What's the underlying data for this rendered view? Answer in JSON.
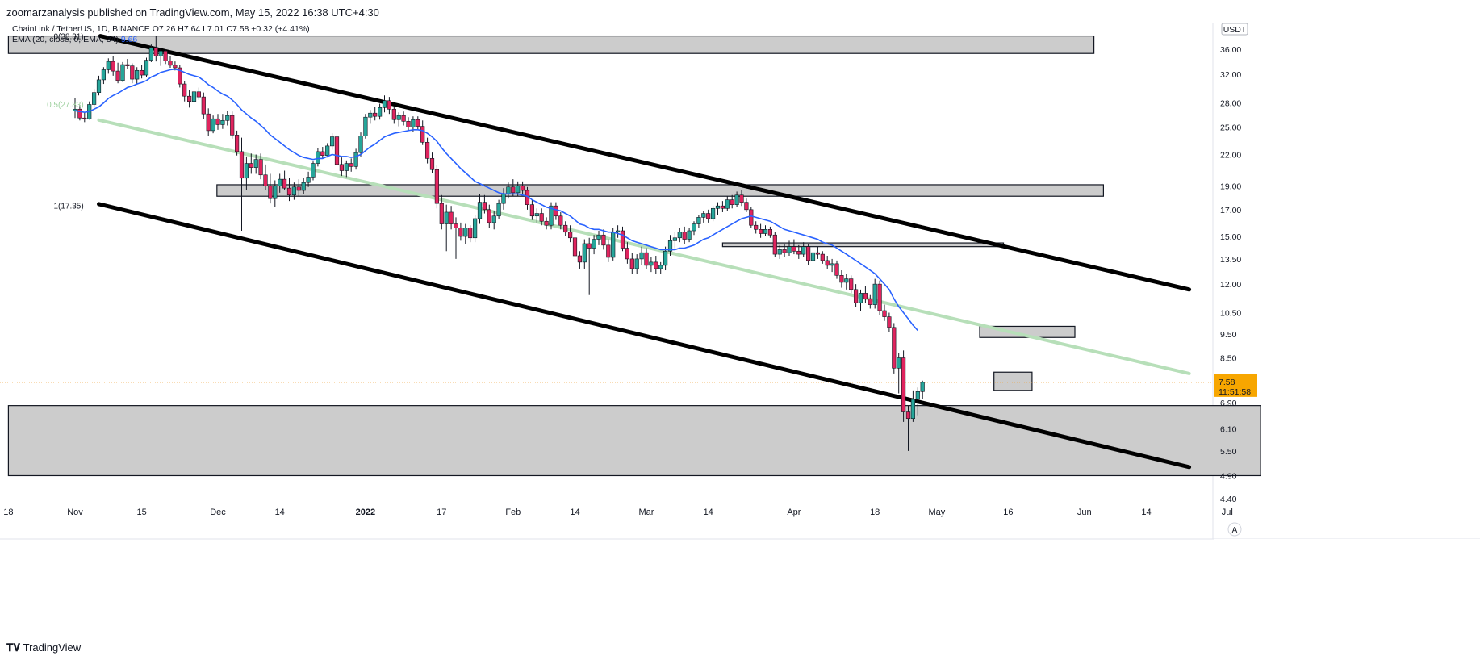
{
  "header": {
    "publisher": "zoomarzanalysis published on TradingView.com, May 15, 2022 16:38 UTC+4:30"
  },
  "chart_data": {
    "type": "candlestick",
    "symbol_line": "ChainLink / TetherUS, 1D, BINANCE  O7.26  H7.64  L7.01  C7.58  +0.32 (+4.41%)",
    "indicator_line": "EMA (20, close, 0, EMA, 34)",
    "indicator_value": "9.66",
    "quote_currency": "USDT",
    "price_axis_ticks": [
      36.0,
      32.0,
      28.0,
      25.0,
      22.0,
      19.0,
      17.0,
      15.0,
      13.5,
      12.0,
      10.5,
      9.5,
      8.5,
      7.58,
      6.9,
      6.1,
      5.5,
      4.9,
      4.4
    ],
    "price_axis_labels": [
      "36.00",
      "32.00",
      "28.00",
      "25.00",
      "22.00",
      "19.00",
      "17.00",
      "15.00",
      "13.50",
      "12.00",
      "10.50",
      "9.50",
      "8.50",
      "6.90",
      "6.10",
      "5.50",
      "4.90",
      "4.40"
    ],
    "time_axis_labels": [
      {
        "label": "18",
        "day": -14
      },
      {
        "label": "Nov",
        "day": 0
      },
      {
        "label": "15",
        "day": 14
      },
      {
        "label": "Dec",
        "day": 30
      },
      {
        "label": "14",
        "day": 43
      },
      {
        "label": "2022",
        "day": 61
      },
      {
        "label": "17",
        "day": 77
      },
      {
        "label": "Feb",
        "day": 92
      },
      {
        "label": "14",
        "day": 105
      },
      {
        "label": "Mar",
        "day": 120
      },
      {
        "label": "14",
        "day": 133
      },
      {
        "label": "Apr",
        "day": 151
      },
      {
        "label": "18",
        "day": 168
      },
      {
        "label": "May",
        "day": 181
      },
      {
        "label": "16",
        "day": 196
      },
      {
        "label": "Jun",
        "day": 212
      },
      {
        "label": "14",
        "day": 225
      },
      {
        "label": "Jul",
        "day": 242
      }
    ],
    "last_price": {
      "value": 7.58,
      "label": "7.58",
      "countdown": "11:51:58"
    },
    "fib_labels": [
      {
        "text": "0(38.31)",
        "day": 3,
        "price": 38.31
      },
      {
        "text": "0.5(27.83)",
        "day": 3,
        "price": 27.83
      },
      {
        "text": "1(17.35)",
        "day": 3,
        "price": 17.35
      }
    ],
    "channel_lines": [
      {
        "name": "upper",
        "from": {
          "day": 5.3,
          "price": 38.3
        },
        "to": {
          "day": 234,
          "price": 11.7
        }
      },
      {
        "name": "fib-mid",
        "from": {
          "day": 5,
          "price": 25.85
        },
        "to": {
          "day": 234,
          "price": 7.9
        }
      },
      {
        "name": "lower",
        "from": {
          "day": 5,
          "price": 17.45
        },
        "to": {
          "day": 234,
          "price": 5.1
        }
      }
    ],
    "zones": [
      {
        "name": "top-resistance",
        "from_day": -14,
        "to_day": 214,
        "high": 38.3,
        "low": 35.3
      },
      {
        "name": "mid-resistance",
        "from_day": 29.8,
        "to_day": 216,
        "high": 19.1,
        "low": 18.1
      },
      {
        "name": "resistance-15",
        "from_day": 136,
        "to_day": 195,
        "high": 14.55,
        "low": 14.3
      },
      {
        "name": "resistance-9-5",
        "from_day": 190,
        "to_day": 210,
        "high": 9.85,
        "low": 9.35
      },
      {
        "name": "resistance-7-8",
        "from_day": 193,
        "to_day": 201,
        "high": 7.95,
        "low": 7.3
      },
      {
        "name": "support-zone",
        "from_day": -14,
        "to_day": 249,
        "high": 6.8,
        "low": 4.9
      }
    ],
    "candles": [
      [
        27.0,
        28.6,
        26.1,
        27.2
      ],
      [
        27.2,
        27.7,
        25.8,
        26.1
      ],
      [
        26.1,
        26.8,
        25.6,
        26.0
      ],
      [
        26.0,
        28.2,
        25.9,
        27.8
      ],
      [
        27.8,
        29.9,
        27.4,
        29.4
      ],
      [
        29.4,
        31.8,
        29.0,
        31.2
      ],
      [
        31.2,
        33.1,
        30.6,
        32.7
      ],
      [
        32.7,
        34.5,
        32.1,
        34.0
      ],
      [
        34.0,
        34.9,
        31.8,
        32.5
      ],
      [
        32.5,
        33.8,
        30.7,
        31.1
      ],
      [
        31.1,
        33.9,
        30.9,
        33.5
      ],
      [
        33.5,
        34.4,
        32.8,
        33.3
      ],
      [
        33.3,
        33.7,
        30.7,
        31.3
      ],
      [
        31.3,
        33.1,
        30.5,
        32.6
      ],
      [
        32.6,
        33.4,
        31.4,
        31.9
      ],
      [
        31.9,
        34.6,
        31.6,
        34.2
      ],
      [
        34.2,
        36.8,
        33.9,
        36.3
      ],
      [
        36.3,
        38.3,
        34.0,
        34.9
      ],
      [
        34.9,
        36.2,
        33.3,
        35.7
      ],
      [
        35.7,
        36.0,
        33.6,
        34.1
      ],
      [
        34.1,
        34.8,
        33.0,
        33.4
      ],
      [
        33.4,
        34.0,
        32.6,
        33.0
      ],
      [
        33.0,
        33.5,
        30.1,
        30.6
      ],
      [
        30.6,
        31.0,
        28.2,
        28.9
      ],
      [
        28.9,
        29.8,
        27.4,
        28.2
      ],
      [
        28.2,
        30.0,
        27.9,
        29.5
      ],
      [
        29.5,
        30.1,
        28.4,
        28.8
      ],
      [
        28.8,
        29.4,
        26.0,
        26.6
      ],
      [
        26.6,
        27.3,
        24.0,
        24.6
      ],
      [
        24.6,
        26.4,
        24.3,
        26.0
      ],
      [
        26.0,
        26.6,
        24.7,
        25.3
      ],
      [
        25.3,
        26.6,
        24.8,
        25.8
      ],
      [
        25.8,
        27.0,
        25.2,
        26.4
      ],
      [
        26.4,
        26.9,
        23.7,
        24.1
      ],
      [
        24.1,
        24.6,
        21.9,
        22.3
      ],
      [
        22.3,
        23.8,
        15.4,
        19.7
      ],
      [
        19.7,
        21.8,
        18.6,
        21.1
      ],
      [
        21.1,
        22.1,
        20.1,
        20.7
      ],
      [
        20.7,
        22.0,
        20.1,
        21.5
      ],
      [
        21.5,
        22.1,
        19.6,
        20.0
      ],
      [
        20.0,
        21.0,
        18.6,
        19.0
      ],
      [
        19.0,
        20.1,
        17.5,
        17.9
      ],
      [
        17.9,
        19.5,
        17.2,
        19.0
      ],
      [
        19.0,
        20.1,
        18.4,
        19.6
      ],
      [
        19.6,
        20.4,
        18.6,
        18.8
      ],
      [
        18.8,
        19.7,
        17.7,
        18.2
      ],
      [
        18.2,
        19.3,
        17.8,
        18.9
      ],
      [
        18.9,
        19.6,
        18.1,
        18.6
      ],
      [
        18.6,
        19.7,
        18.3,
        19.3
      ],
      [
        19.3,
        20.3,
        18.9,
        19.8
      ],
      [
        19.8,
        21.3,
        19.5,
        21.1
      ],
      [
        21.1,
        22.7,
        20.8,
        22.3
      ],
      [
        22.3,
        22.8,
        21.6,
        21.9
      ],
      [
        21.9,
        23.2,
        21.7,
        22.9
      ],
      [
        22.9,
        24.3,
        22.5,
        23.9
      ],
      [
        23.9,
        24.4,
        20.6,
        21.0
      ],
      [
        21.0,
        21.7,
        19.9,
        20.4
      ],
      [
        20.4,
        21.4,
        19.8,
        21.1
      ],
      [
        21.1,
        21.6,
        20.3,
        20.8
      ],
      [
        20.8,
        22.6,
        20.5,
        22.2
      ],
      [
        22.2,
        24.4,
        21.8,
        24.0
      ],
      [
        24.0,
        26.6,
        23.7,
        26.2
      ],
      [
        26.2,
        27.1,
        25.4,
        26.7
      ],
      [
        26.7,
        27.5,
        25.8,
        26.3
      ],
      [
        26.3,
        27.9,
        25.9,
        27.4
      ],
      [
        27.4,
        29.0,
        26.8,
        28.3
      ],
      [
        28.3,
        28.8,
        26.6,
        27.2
      ],
      [
        27.2,
        27.6,
        25.4,
        25.9
      ],
      [
        25.9,
        26.8,
        25.1,
        26.4
      ],
      [
        26.4,
        26.9,
        25.2,
        25.7
      ],
      [
        25.7,
        26.2,
        24.6,
        25.0
      ],
      [
        25.0,
        26.3,
        24.5,
        25.9
      ],
      [
        25.9,
        26.3,
        24.7,
        25.1
      ],
      [
        25.1,
        25.8,
        23.0,
        23.3
      ],
      [
        23.3,
        23.8,
        21.1,
        21.6
      ],
      [
        21.6,
        22.2,
        20.2,
        20.5
      ],
      [
        20.5,
        20.9,
        17.1,
        17.5
      ],
      [
        17.5,
        18.2,
        15.5,
        15.9
      ],
      [
        15.9,
        17.4,
        14.0,
        16.8
      ],
      [
        16.8,
        17.3,
        15.5,
        15.9
      ],
      [
        15.9,
        16.4,
        13.5,
        15.6
      ],
      [
        15.6,
        16.0,
        14.7,
        15.0
      ],
      [
        15.0,
        15.9,
        14.5,
        15.6
      ],
      [
        15.6,
        15.8,
        14.6,
        14.9
      ],
      [
        14.9,
        16.6,
        14.6,
        16.3
      ],
      [
        16.3,
        18.3,
        15.9,
        17.6
      ],
      [
        17.6,
        18.2,
        16.7,
        17.0
      ],
      [
        17.0,
        17.4,
        15.6,
        16.0
      ],
      [
        16.0,
        16.9,
        15.5,
        16.5
      ],
      [
        16.5,
        17.8,
        16.3,
        17.5
      ],
      [
        17.5,
        18.8,
        17.0,
        18.3
      ],
      [
        18.3,
        19.3,
        17.9,
        18.9
      ],
      [
        18.9,
        19.6,
        18.1,
        18.4
      ],
      [
        18.4,
        19.4,
        18.1,
        19.0
      ],
      [
        19.0,
        19.4,
        18.3,
        18.6
      ],
      [
        18.6,
        18.9,
        17.0,
        17.4
      ],
      [
        17.4,
        17.8,
        16.2,
        16.5
      ],
      [
        16.5,
        17.1,
        16.0,
        16.7
      ],
      [
        16.7,
        17.1,
        15.8,
        16.1
      ],
      [
        16.1,
        16.4,
        15.5,
        15.8
      ],
      [
        15.8,
        17.6,
        15.5,
        17.3
      ],
      [
        17.3,
        17.6,
        16.2,
        16.5
      ],
      [
        16.5,
        16.8,
        15.5,
        15.8
      ],
      [
        15.8,
        16.1,
        15.0,
        15.3
      ],
      [
        15.3,
        15.8,
        14.6,
        14.9
      ],
      [
        14.9,
        15.2,
        13.4,
        13.7
      ],
      [
        13.7,
        14.0,
        12.9,
        13.3
      ],
      [
        13.3,
        14.8,
        12.9,
        14.5
      ],
      [
        14.5,
        14.9,
        11.4,
        14.2
      ],
      [
        14.2,
        15.1,
        13.8,
        14.8
      ],
      [
        14.8,
        15.4,
        14.4,
        15.1
      ],
      [
        15.1,
        15.5,
        14.1,
        14.4
      ],
      [
        14.4,
        14.8,
        13.3,
        13.6
      ],
      [
        13.6,
        15.6,
        13.4,
        15.3
      ],
      [
        15.3,
        15.8,
        14.9,
        15.4
      ],
      [
        15.4,
        15.7,
        14.0,
        14.2
      ],
      [
        14.2,
        14.6,
        13.2,
        13.5
      ],
      [
        13.5,
        13.9,
        12.6,
        12.9
      ],
      [
        12.9,
        13.8,
        12.6,
        13.5
      ],
      [
        13.5,
        14.3,
        13.1,
        13.9
      ],
      [
        13.9,
        14.2,
        12.9,
        13.1
      ],
      [
        13.1,
        13.6,
        12.7,
        13.3
      ],
      [
        13.3,
        13.7,
        12.6,
        12.9
      ],
      [
        12.9,
        13.3,
        12.6,
        13.1
      ],
      [
        13.1,
        14.3,
        12.8,
        14.0
      ],
      [
        14.0,
        15.1,
        13.7,
        14.7
      ],
      [
        14.7,
        15.3,
        14.2,
        14.9
      ],
      [
        14.9,
        15.6,
        14.6,
        15.3
      ],
      [
        15.3,
        15.7,
        14.5,
        14.8
      ],
      [
        14.8,
        15.6,
        14.6,
        15.4
      ],
      [
        15.4,
        16.1,
        15.1,
        15.9
      ],
      [
        15.9,
        16.6,
        15.6,
        16.4
      ],
      [
        16.4,
        16.9,
        16.0,
        16.7
      ],
      [
        16.7,
        17.0,
        16.0,
        16.3
      ],
      [
        16.3,
        17.3,
        16.1,
        17.1
      ],
      [
        17.1,
        17.6,
        16.6,
        17.3
      ],
      [
        17.3,
        17.7,
        16.8,
        17.1
      ],
      [
        17.1,
        18.1,
        16.9,
        17.8
      ],
      [
        17.8,
        18.2,
        17.1,
        17.4
      ],
      [
        17.4,
        18.5,
        17.2,
        18.2
      ],
      [
        18.2,
        18.6,
        17.3,
        17.6
      ],
      [
        17.6,
        17.9,
        16.8,
        17.0
      ],
      [
        17.0,
        17.2,
        15.6,
        15.8
      ],
      [
        15.8,
        16.1,
        15.2,
        15.5
      ],
      [
        15.5,
        15.9,
        14.9,
        15.2
      ],
      [
        15.2,
        15.8,
        15.0,
        15.5
      ],
      [
        15.5,
        15.7,
        14.9,
        15.1
      ],
      [
        15.1,
        15.3,
        13.6,
        13.8
      ],
      [
        13.8,
        14.4,
        13.5,
        14.1
      ],
      [
        14.1,
        14.5,
        13.6,
        13.9
      ],
      [
        13.9,
        14.7,
        13.7,
        14.3
      ],
      [
        14.3,
        14.8,
        13.8,
        14.0
      ],
      [
        14.0,
        14.4,
        13.5,
        13.8
      ],
      [
        13.8,
        14.6,
        13.6,
        14.3
      ],
      [
        14.3,
        14.5,
        13.1,
        13.4
      ],
      [
        13.4,
        14.1,
        13.2,
        13.9
      ],
      [
        13.9,
        14.3,
        13.5,
        13.8
      ],
      [
        13.8,
        14.0,
        13.2,
        13.4
      ],
      [
        13.4,
        13.7,
        12.9,
        13.1
      ],
      [
        13.1,
        13.5,
        12.7,
        13.2
      ],
      [
        13.2,
        13.4,
        12.3,
        12.5
      ],
      [
        12.5,
        12.8,
        11.8,
        12.1
      ],
      [
        12.1,
        12.6,
        11.7,
        12.3
      ],
      [
        12.3,
        12.5,
        11.5,
        11.7
      ],
      [
        11.7,
        12.0,
        10.8,
        11.0
      ],
      [
        11.0,
        11.7,
        10.6,
        11.5
      ],
      [
        11.5,
        11.9,
        11.0,
        11.2
      ],
      [
        11.2,
        11.4,
        10.7,
        10.9
      ],
      [
        10.9,
        12.3,
        10.7,
        12.0
      ],
      [
        12.0,
        12.2,
        10.4,
        10.6
      ],
      [
        10.6,
        10.9,
        10.1,
        10.3
      ],
      [
        10.3,
        10.5,
        9.6,
        9.8
      ],
      [
        9.8,
        10.0,
        7.9,
        8.1
      ],
      [
        8.1,
        8.7,
        7.2,
        8.5
      ],
      [
        8.5,
        8.8,
        6.3,
        6.6
      ],
      [
        6.6,
        6.8,
        5.5,
        6.4
      ],
      [
        6.4,
        7.3,
        6.3,
        7.0
      ],
      [
        7.0,
        7.4,
        6.5,
        7.26
      ],
      [
        7.26,
        7.64,
        7.01,
        7.58
      ]
    ],
    "ema": [
      27.0,
      26.9,
      26.8,
      26.9,
      27.2,
      27.5,
      28.0,
      28.6,
      29.0,
      29.3,
      29.7,
      30.1,
      30.3,
      30.6,
      30.8,
      31.1,
      31.6,
      31.9,
      32.3,
      32.5,
      32.7,
      32.8,
      32.6,
      32.3,
      32.0,
      31.8,
      31.6,
      31.1,
      30.5,
      30.1,
      29.6,
      29.2,
      28.9,
      28.4,
      27.8,
      27.1,
      26.6,
      26.1,
      25.7,
      25.2,
      24.7,
      24.1,
      23.7,
      23.3,
      22.9,
      22.5,
      22.2,
      21.9,
      21.7,
      21.6,
      21.5,
      21.6,
      21.6,
      21.8,
      22.0,
      21.9,
      21.8,
      21.8,
      21.7,
      21.8,
      22.0,
      22.4,
      22.8,
      23.1,
      23.5,
      23.9,
      24.1,
      24.3,
      24.4,
      24.5,
      24.6,
      24.7,
      24.7,
      24.6,
      24.3,
      23.9,
      23.4,
      22.7,
      22.1,
      21.6,
      21.1,
      20.6,
      20.2,
      19.8,
      19.4,
      19.2,
      19.0,
      18.8,
      18.6,
      18.4,
      18.3,
      18.3,
      18.3,
      18.3,
      18.2,
      18.1,
      17.8,
      17.6,
      17.4,
      17.2,
      17.1,
      17.0,
      16.9,
      16.7,
      16.5,
      16.2,
      15.9,
      15.8,
      15.6,
      15.5,
      15.5,
      15.4,
      15.3,
      15.3,
      15.2,
      15.1,
      14.9,
      14.7,
      14.6,
      14.5,
      14.4,
      14.3,
      14.2,
      14.1,
      14.1,
      14.1,
      14.1,
      14.2,
      14.2,
      14.3,
      14.4,
      14.6,
      14.8,
      14.9,
      15.1,
      15.3,
      15.5,
      15.7,
      15.9,
      16.1,
      16.3,
      16.4,
      16.5,
      16.4,
      16.3,
      16.2,
      16.1,
      15.9,
      15.7,
      15.5,
      15.4,
      15.3,
      15.2,
      15.1,
      15.0,
      14.9,
      14.8,
      14.6,
      14.5,
      14.4,
      14.2,
      14.0,
      13.8,
      13.6,
      13.4,
      13.2,
      13.0,
      12.8,
      12.6,
      12.3,
      12.0,
      11.7,
      11.2,
      10.8,
      10.5,
      10.2,
      9.9,
      9.66
    ]
  }
}
